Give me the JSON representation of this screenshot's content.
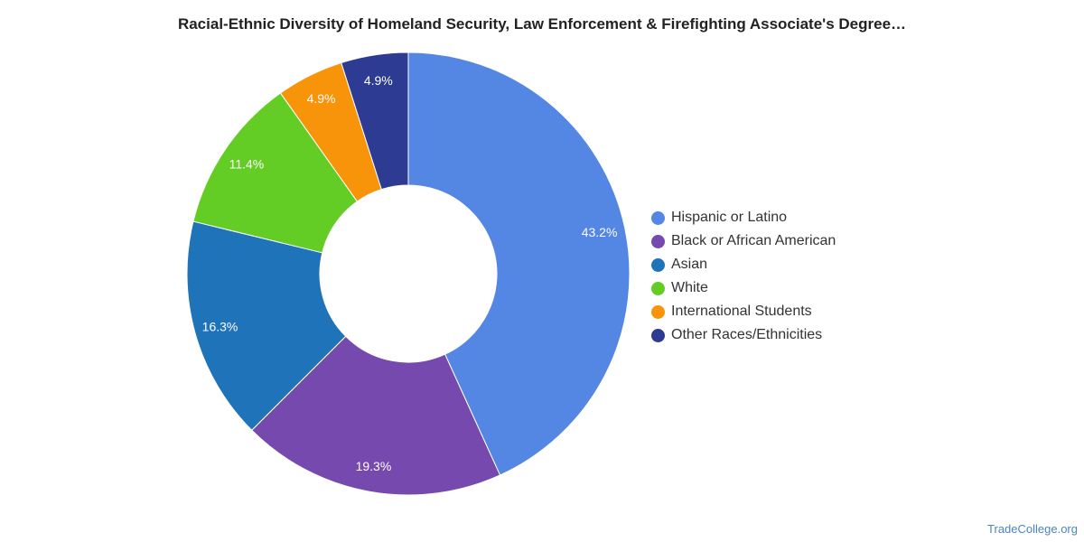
{
  "chart_data": {
    "type": "pie",
    "title": "Racial-Ethnic Diversity of Homeland Security, Law Enforcement & Firefighting Associate's Degree…",
    "donut": true,
    "legend_position": "right",
    "categories": [
      "Hispanic or Latino",
      "Black or African American",
      "Asian",
      "White",
      "International Students",
      "Other Races/Ethnicities"
    ],
    "values": [
      43.2,
      19.3,
      16.3,
      11.4,
      4.9,
      4.9
    ],
    "value_labels": [
      "43.2%",
      "19.3%",
      "16.3%",
      "11.4%",
      "4.9%",
      "4.9%"
    ],
    "colors": [
      "#5486e3",
      "#7549ae",
      "#1f73b9",
      "#63cd25",
      "#f7940a",
      "#2d3b92"
    ]
  },
  "watermark": "TradeCollege.org"
}
